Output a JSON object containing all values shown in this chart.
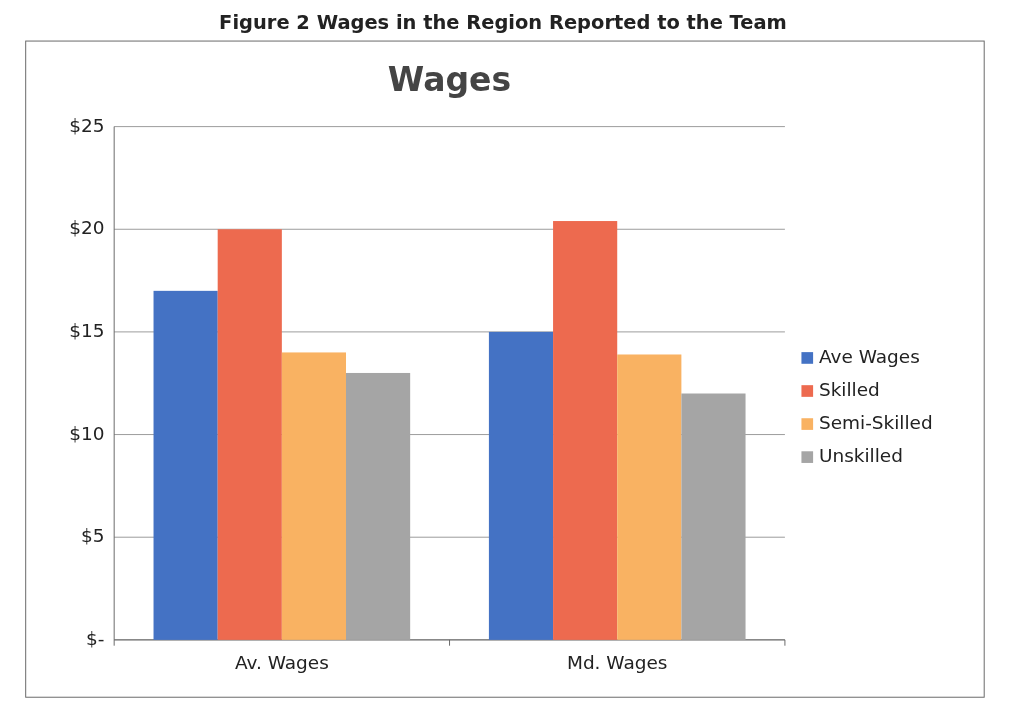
{
  "chart_data": {
    "type": "bar",
    "title": "Wages",
    "annotations": [
      "Figure 2 Wages in the Region Reported to the Team"
    ],
    "categories": [
      "Av. Wages",
      "Md. Wages"
    ],
    "series": [
      {
        "name": "Ave Wages",
        "color": "#4472c4",
        "values": [
          17,
          15
        ]
      },
      {
        "name": "Skilled",
        "color": "#ed6a4f",
        "values": [
          20,
          20.4
        ]
      },
      {
        "name": "Semi-Skilled",
        "color": "#f9b262",
        "values": [
          14,
          13.9
        ]
      },
      {
        "name": "Unskilled",
        "color": "#a5a5a5",
        "values": [
          13,
          12
        ]
      }
    ],
    "ylim": [
      0,
      25
    ],
    "yticks": [
      {
        "value": 0,
        "label": "$-"
      },
      {
        "value": 5,
        "label": "$5"
      },
      {
        "value": 10,
        "label": "$10"
      },
      {
        "value": 15,
        "label": "$15"
      },
      {
        "value": 20,
        "label": "$20"
      },
      {
        "value": 25,
        "label": "$25"
      }
    ],
    "grid": "y",
    "legend": "right"
  }
}
